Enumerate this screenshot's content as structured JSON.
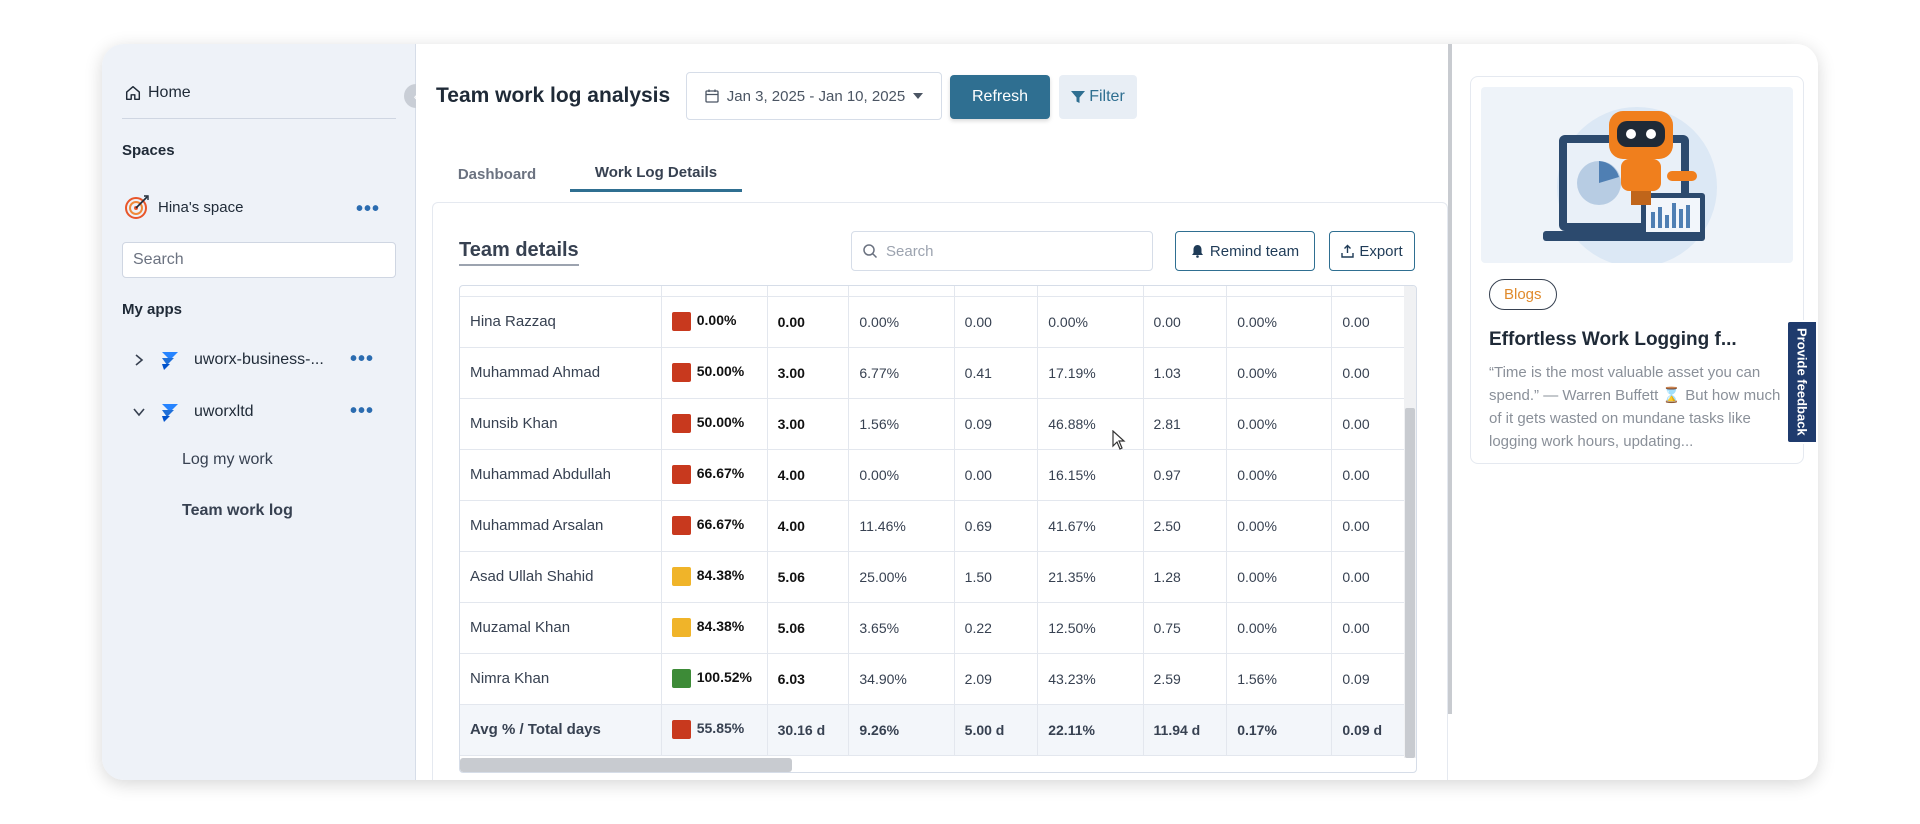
{
  "sidebar": {
    "home_label": "Home",
    "spaces_label": "Spaces",
    "space_name": "Hina's space",
    "search_placeholder": "Search",
    "my_apps_label": "My apps",
    "apps": [
      {
        "label": "uworx-business-...",
        "expanded": false
      },
      {
        "label": "uworxltd",
        "expanded": true
      }
    ],
    "sub_items": [
      "Log my work",
      "Team work log"
    ],
    "active_sub_item": "Team work log"
  },
  "header": {
    "title": "Team work log analysis",
    "date_range": "Jan 3, 2025 - Jan 10, 2025",
    "refresh_label": "Refresh",
    "filter_label": "Filter"
  },
  "tabs": [
    {
      "label": "Dashboard",
      "active": false
    },
    {
      "label": "Work Log Details",
      "active": true
    }
  ],
  "team_details": {
    "title": "Team details",
    "search_placeholder": "Search",
    "remind_label": "Remind team",
    "export_label": "Export",
    "status_colors": {
      "red": "#c8391e",
      "yellow": "#f0b429",
      "green": "#3d8b37"
    },
    "rows": [
      {
        "name": "Hina Razzaq",
        "status": "red",
        "cells": [
          "0.00%",
          "0.00",
          "0.00%",
          "0.00",
          "0.00%",
          "0.00",
          "0.00%",
          "0.00"
        ]
      },
      {
        "name": "Muhammad Ahmad",
        "status": "red",
        "cells": [
          "50.00%",
          "3.00",
          "6.77%",
          "0.41",
          "17.19%",
          "1.03",
          "0.00%",
          "0.00"
        ]
      },
      {
        "name": "Munsib Khan",
        "status": "red",
        "cells": [
          "50.00%",
          "3.00",
          "1.56%",
          "0.09",
          "46.88%",
          "2.81",
          "0.00%",
          "0.00"
        ]
      },
      {
        "name": "Muhammad Abdullah",
        "status": "red",
        "cells": [
          "66.67%",
          "4.00",
          "0.00%",
          "0.00",
          "16.15%",
          "0.97",
          "0.00%",
          "0.00"
        ]
      },
      {
        "name": "Muhammad Arsalan",
        "status": "red",
        "cells": [
          "66.67%",
          "4.00",
          "11.46%",
          "0.69",
          "41.67%",
          "2.50",
          "0.00%",
          "0.00"
        ]
      },
      {
        "name": "Asad Ullah Shahid",
        "status": "yellow",
        "cells": [
          "84.38%",
          "5.06",
          "25.00%",
          "1.50",
          "21.35%",
          "1.28",
          "0.00%",
          "0.00"
        ]
      },
      {
        "name": "Muzamal Khan",
        "status": "yellow",
        "cells": [
          "84.38%",
          "5.06",
          "3.65%",
          "0.22",
          "12.50%",
          "0.75",
          "0.00%",
          "0.00"
        ]
      },
      {
        "name": "Nimra Khan",
        "status": "green",
        "cells": [
          "100.52%",
          "6.03",
          "34.90%",
          "2.09",
          "43.23%",
          "2.59",
          "1.56%",
          "0.09"
        ]
      }
    ],
    "total": {
      "name": "Avg % / Total days",
      "status": "red",
      "cells": [
        "55.85%",
        "30.16 d",
        "9.26%",
        "5.00 d",
        "22.11%",
        "11.94 d",
        "0.17%",
        "0.09 d"
      ]
    }
  },
  "blog": {
    "badge": "Blogs",
    "title": "Effortless Work Logging f...",
    "excerpt": "“Time is the most valuable asset you can spend.” — Warren Buffett ⌛ But how much of it gets wasted on mundane tasks like logging work hours, updating..."
  },
  "feedback_label": "Provide feedback"
}
